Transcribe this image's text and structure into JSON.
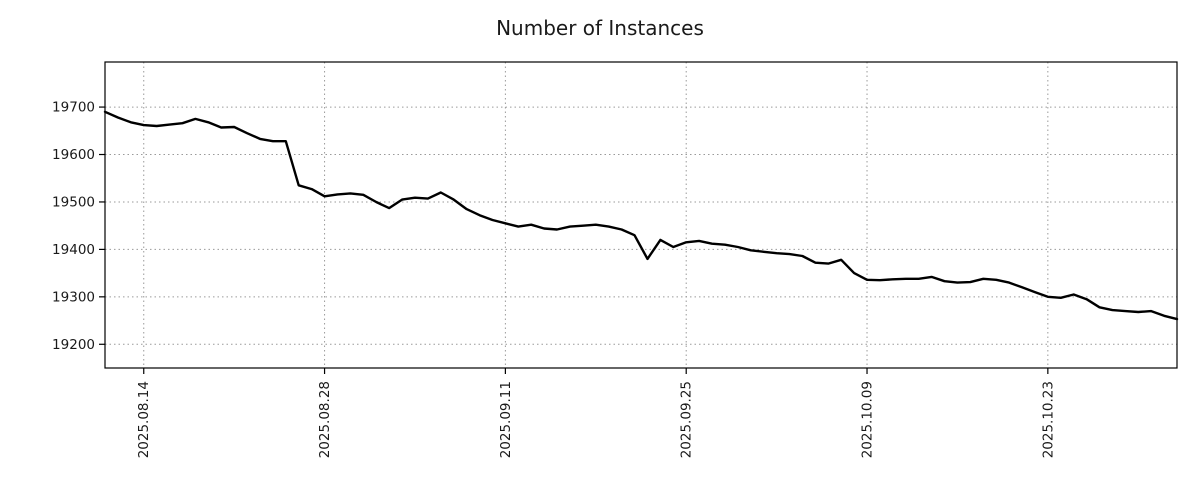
{
  "chart_data": {
    "type": "line",
    "title": "Number of Instances",
    "xlabel": "",
    "ylabel": "",
    "background_color": "#ffffff",
    "line_color": "#000000",
    "grid_color": "#9a9a9a",
    "axis_color": "#000000",
    "text_color": "#1a1a1a",
    "grid": true,
    "legend": "none",
    "ylim": [
      19150,
      19795
    ],
    "y_ticks": [
      19200,
      19300,
      19400,
      19500,
      19600,
      19700
    ],
    "x_tick_labels": [
      "2025.08.14",
      "2025.08.28",
      "2025.09.11",
      "2025.09.25",
      "2025.10.09",
      "2025.10.23"
    ],
    "x_tick_indices": [
      3,
      17,
      31,
      45,
      59,
      73
    ],
    "x": [
      "2025-08-11",
      "2025-08-12",
      "2025-08-13",
      "2025-08-14",
      "2025-08-15",
      "2025-08-16",
      "2025-08-17",
      "2025-08-18",
      "2025-08-19",
      "2025-08-20",
      "2025-08-21",
      "2025-08-22",
      "2025-08-23",
      "2025-08-24",
      "2025-08-25",
      "2025-08-26",
      "2025-08-27",
      "2025-08-28",
      "2025-08-29",
      "2025-08-30",
      "2025-08-31",
      "2025-09-01",
      "2025-09-02",
      "2025-09-03",
      "2025-09-04",
      "2025-09-05",
      "2025-09-06",
      "2025-09-07",
      "2025-09-08",
      "2025-09-09",
      "2025-09-10",
      "2025-09-11",
      "2025-09-12",
      "2025-09-13",
      "2025-09-14",
      "2025-09-15",
      "2025-09-16",
      "2025-09-17",
      "2025-09-18",
      "2025-09-19",
      "2025-09-20",
      "2025-09-21",
      "2025-09-22",
      "2025-09-23",
      "2025-09-24",
      "2025-09-25",
      "2025-09-26",
      "2025-09-27",
      "2025-09-28",
      "2025-09-29",
      "2025-09-30",
      "2025-10-01",
      "2025-10-02",
      "2025-10-03",
      "2025-10-04",
      "2025-10-05",
      "2025-10-06",
      "2025-10-07",
      "2025-10-08",
      "2025-10-09",
      "2025-10-10",
      "2025-10-11",
      "2025-10-12",
      "2025-10-13",
      "2025-10-14",
      "2025-10-15",
      "2025-10-16",
      "2025-10-17",
      "2025-10-18",
      "2025-10-19",
      "2025-10-20",
      "2025-10-21",
      "2025-10-22",
      "2025-10-23",
      "2025-10-24",
      "2025-10-25",
      "2025-10-26",
      "2025-10-27",
      "2025-10-28",
      "2025-10-29",
      "2025-10-30",
      "2025-10-31",
      "2025-11-01",
      "2025-11-02"
    ],
    "values": [
      19690,
      19678,
      19668,
      19662,
      19660,
      19663,
      19666,
      19675,
      19668,
      19657,
      19658,
      19645,
      19633,
      19628,
      19628,
      19535,
      19527,
      19512,
      19516,
      19518,
      19515,
      19500,
      19487,
      19505,
      19509,
      19507,
      19520,
      19505,
      19485,
      19472,
      19462,
      19455,
      19448,
      19452,
      19444,
      19442,
      19448,
      19450,
      19452,
      19448,
      19442,
      19430,
      19380,
      19420,
      19405,
      19415,
      19418,
      19412,
      19410,
      19405,
      19398,
      19395,
      19392,
      19390,
      19386,
      19372,
      19370,
      19378,
      19350,
      19336,
      19335,
      19337,
      19338,
      19338,
      19342,
      19333,
      19330,
      19331,
      19338,
      19336,
      19330,
      19320,
      19310,
      19300,
      19298,
      19305,
      19295,
      19278,
      19272,
      19270,
      19268,
      19270,
      19260,
      19253
    ]
  }
}
